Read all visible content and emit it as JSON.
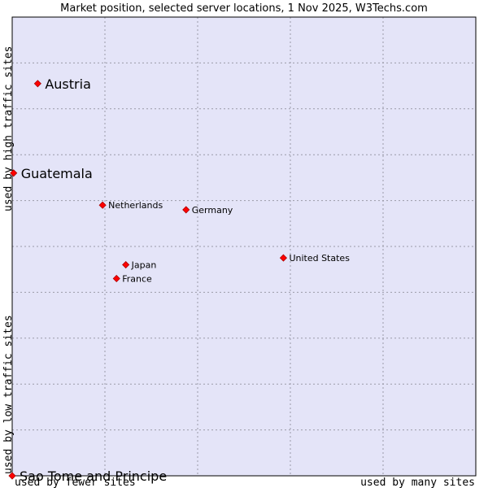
{
  "chart_data": {
    "type": "scatter",
    "title": "Market position, selected server locations, 1 Nov 2025, W3Techs.com",
    "xlabel_left": "used by fewer sites",
    "xlabel_right": "used by many sites",
    "ylabel_top": "used by high traffic sites",
    "ylabel_bottom": "used by low traffic sites",
    "xlim": [
      0,
      100
    ],
    "ylim": [
      0,
      100
    ],
    "grid": true,
    "colors": {
      "plot_background": "#e4e4f8",
      "grid": "#9a9aa8",
      "border": "#000000",
      "marker_fill": "#ff0000",
      "marker_stroke": "#aa0000"
    },
    "points": [
      {
        "label": "Austria",
        "x": 5.5,
        "y": 85.5,
        "emphasis": true
      },
      {
        "label": "Guatemala",
        "x": 0.3,
        "y": 66.0,
        "emphasis": true
      },
      {
        "label": "Netherlands",
        "x": 19.5,
        "y": 59.0,
        "emphasis": false
      },
      {
        "label": "Germany",
        "x": 37.5,
        "y": 58.0,
        "emphasis": false
      },
      {
        "label": "United States",
        "x": 58.5,
        "y": 47.5,
        "emphasis": false
      },
      {
        "label": "Japan",
        "x": 24.5,
        "y": 46.0,
        "emphasis": false
      },
      {
        "label": "France",
        "x": 22.5,
        "y": 43.0,
        "emphasis": false
      },
      {
        "label": "Sao Tome and Principe",
        "x": 0.0,
        "y": 0.0,
        "emphasis": true
      }
    ]
  }
}
